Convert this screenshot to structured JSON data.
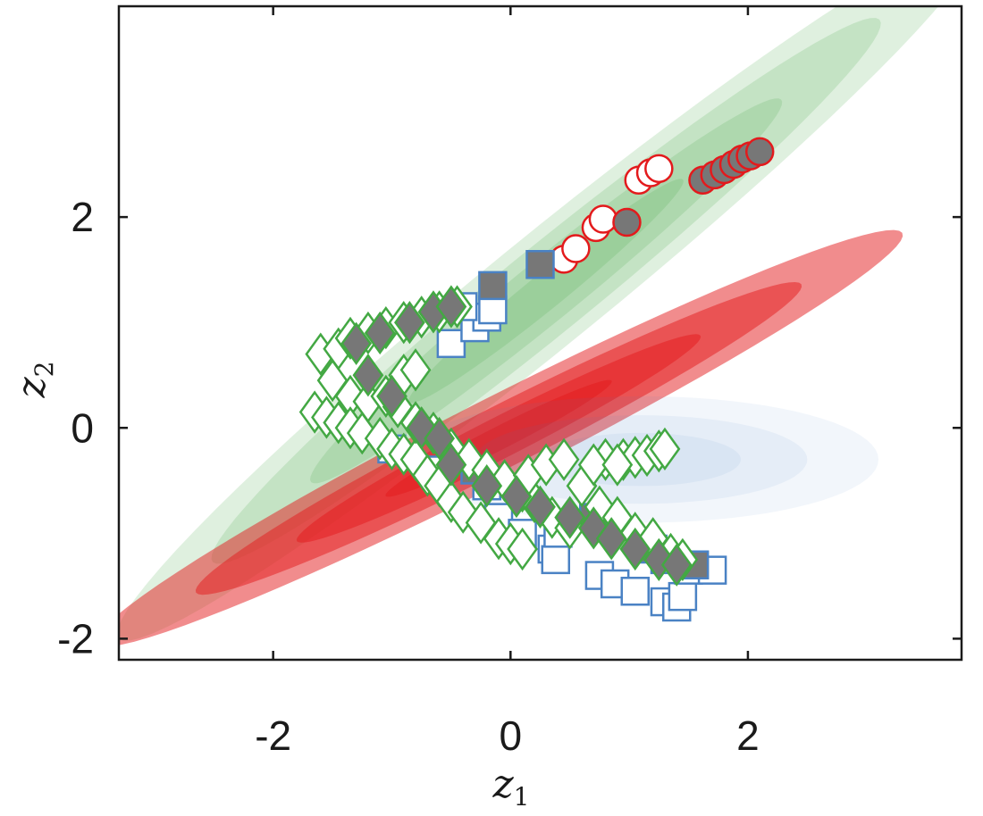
{
  "chart_data": {
    "type": "scatter",
    "xlabel": "z",
    "xlabel_sub": "1",
    "ylabel": "z",
    "ylabel_sub": "2",
    "xlim": [
      -3.3,
      3.8
    ],
    "ylim": [
      -2.2,
      4.0
    ],
    "xticks": [
      -2,
      0,
      2
    ],
    "yticks": [
      -2,
      0,
      2
    ],
    "xtick_labels": [
      "-2",
      "0",
      "2"
    ],
    "ytick_labels": [
      "-2",
      "0",
      "2"
    ],
    "grid": false,
    "regions": [
      {
        "color": "#43a843",
        "center": [
          0.3,
          1.3
        ],
        "half_major": [
          3.6,
          3.3
        ],
        "half_minor": 0.5,
        "levels": [
          1.0,
          0.78,
          0.55,
          0.32
        ],
        "opacity": 0.17
      },
      {
        "color": "#e31a1c",
        "center": [
          -0.1,
          -0.1
        ],
        "half_major": [
          3.4,
          1.95
        ],
        "half_minor": 0.38,
        "levels": [
          1.0,
          0.75,
          0.5,
          0.28
        ],
        "opacity": 0.5
      },
      {
        "color": "#4a82c4",
        "center": [
          1.1,
          -0.3
        ],
        "half_major": [
          2.0,
          0.0
        ],
        "half_minor": 0.6,
        "levels": [
          1.0,
          0.7,
          0.42
        ],
        "opacity": 0.07
      }
    ],
    "series": [
      {
        "marker": "circle",
        "fill": "#ffffff",
        "edge": "#e31a1c",
        "size": 32,
        "points": [
          [
            0.45,
            1.6
          ],
          [
            0.55,
            1.7
          ],
          [
            0.72,
            1.9
          ],
          [
            0.78,
            1.98
          ],
          [
            1.08,
            2.35
          ],
          [
            1.18,
            2.42
          ],
          [
            1.25,
            2.46
          ]
        ]
      },
      {
        "marker": "circle",
        "fill": "#777777",
        "edge": "#e31a1c",
        "size": 32,
        "points": [
          [
            0.98,
            1.95
          ],
          [
            1.62,
            2.35
          ],
          [
            1.72,
            2.4
          ],
          [
            1.8,
            2.45
          ],
          [
            1.88,
            2.5
          ],
          [
            1.95,
            2.55
          ],
          [
            2.02,
            2.58
          ],
          [
            2.1,
            2.62
          ]
        ]
      },
      {
        "marker": "square",
        "fill": "#ffffff",
        "edge": "#4a82c4",
        "size": 30,
        "points": [
          [
            -0.5,
            0.8
          ],
          [
            -0.3,
            0.95
          ],
          [
            -0.2,
            1.05
          ],
          [
            -0.15,
            1.12
          ],
          [
            -0.4,
            1.15
          ],
          [
            -0.1,
            -0.85
          ],
          [
            0.1,
            -1.0
          ],
          [
            0.35,
            -1.15
          ],
          [
            0.38,
            -1.25
          ],
          [
            0.75,
            -1.4
          ],
          [
            0.88,
            -1.48
          ],
          [
            1.05,
            -1.55
          ],
          [
            1.3,
            -1.65
          ],
          [
            1.4,
            -1.7
          ],
          [
            1.45,
            -1.6
          ],
          [
            -1.0,
            -0.2
          ],
          [
            -0.6,
            -0.4
          ],
          [
            -0.2,
            -0.55
          ],
          [
            0.4,
            -1.0
          ],
          [
            1.5,
            -1.35
          ],
          [
            1.7,
            -1.35
          ],
          [
            1.3,
            -1.25
          ]
        ]
      },
      {
        "marker": "square",
        "fill": "#777777",
        "edge": "#4a82c4",
        "size": 30,
        "points": [
          [
            0.25,
            1.55
          ],
          [
            -0.15,
            1.35
          ],
          [
            -0.3,
            -0.4
          ],
          [
            0.7,
            -0.85
          ],
          [
            1.2,
            -1.15
          ],
          [
            1.55,
            -1.3
          ]
        ]
      },
      {
        "marker": "diamond",
        "fill": "#ffffff",
        "edge": "#43a843",
        "size": 44,
        "points": [
          [
            -1.6,
            0.7
          ],
          [
            -1.45,
            0.75
          ],
          [
            -1.35,
            0.85
          ],
          [
            -1.2,
            0.9
          ],
          [
            -1.05,
            0.95
          ],
          [
            -0.9,
            1.0
          ],
          [
            -0.75,
            1.05
          ],
          [
            -0.6,
            1.1
          ],
          [
            -0.45,
            1.15
          ],
          [
            -1.5,
            0.45
          ],
          [
            -1.35,
            0.3
          ],
          [
            -1.2,
            0.25
          ],
          [
            -1.05,
            0.3
          ],
          [
            -0.9,
            0.5
          ],
          [
            -0.8,
            0.55
          ],
          [
            -1.65,
            0.15
          ],
          [
            -1.55,
            0.1
          ],
          [
            -1.45,
            0.05
          ],
          [
            -1.35,
            0.0
          ],
          [
            -1.25,
            -0.05
          ],
          [
            -1.1,
            -0.1
          ],
          [
            -1.0,
            -0.2
          ],
          [
            -0.9,
            -0.25
          ],
          [
            -0.8,
            -0.3
          ],
          [
            -0.7,
            -0.45
          ],
          [
            -0.6,
            -0.55
          ],
          [
            -0.5,
            -0.7
          ],
          [
            -0.4,
            -0.8
          ],
          [
            -0.25,
            -0.9
          ],
          [
            -0.1,
            -1.05
          ],
          [
            0.0,
            -1.1
          ],
          [
            0.1,
            -1.15
          ],
          [
            -0.95,
            0.2
          ],
          [
            -0.8,
            0.05
          ],
          [
            -0.65,
            -0.05
          ],
          [
            -0.5,
            -0.2
          ],
          [
            -0.35,
            -0.3
          ],
          [
            -0.2,
            -0.4
          ],
          [
            -0.05,
            -0.5
          ],
          [
            0.1,
            -0.6
          ],
          [
            0.2,
            -0.7
          ],
          [
            0.35,
            -0.85
          ],
          [
            0.5,
            -0.95
          ],
          [
            0.15,
            -0.45
          ],
          [
            0.3,
            -0.35
          ],
          [
            0.45,
            -0.3
          ],
          [
            0.6,
            -0.55
          ],
          [
            0.75,
            -0.75
          ],
          [
            0.9,
            -0.85
          ],
          [
            1.05,
            -1.0
          ],
          [
            1.2,
            -1.05
          ],
          [
            1.35,
            -1.2
          ],
          [
            1.45,
            -1.25
          ],
          [
            0.8,
            -0.3
          ],
          [
            0.95,
            -0.3
          ],
          [
            1.05,
            -0.28
          ],
          [
            1.15,
            -0.26
          ],
          [
            1.25,
            -0.22
          ],
          [
            1.3,
            -0.2
          ],
          [
            0.7,
            -0.35
          ],
          [
            0.9,
            -0.35
          ]
        ]
      },
      {
        "marker": "diamond",
        "fill": "#777777",
        "edge": "#43a843",
        "size": 44,
        "points": [
          [
            -1.3,
            0.8
          ],
          [
            -1.1,
            0.9
          ],
          [
            -0.85,
            1.0
          ],
          [
            -0.65,
            1.1
          ],
          [
            -0.5,
            1.15
          ],
          [
            -1.2,
            0.5
          ],
          [
            -1.0,
            0.3
          ],
          [
            -0.75,
            0.0
          ],
          [
            -0.6,
            -0.1
          ],
          [
            -0.5,
            -0.35
          ],
          [
            -0.2,
            -0.55
          ],
          [
            0.05,
            -0.65
          ],
          [
            0.25,
            -0.75
          ],
          [
            0.5,
            -0.85
          ],
          [
            0.7,
            -0.95
          ],
          [
            0.85,
            -1.05
          ],
          [
            1.05,
            -1.15
          ],
          [
            1.25,
            -1.25
          ],
          [
            1.4,
            -1.3
          ]
        ]
      }
    ]
  }
}
